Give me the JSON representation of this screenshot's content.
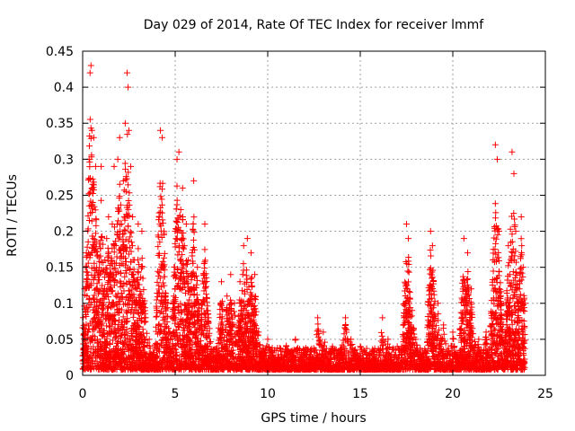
{
  "chart_data": {
    "type": "scatter",
    "title": "Day 029 of 2014, Rate Of TEC Index for receiver lmmf",
    "xlabel": "GPS time / hours",
    "ylabel": "ROTI / TECUs",
    "xlim": [
      0,
      25
    ],
    "ylim": [
      0,
      0.45
    ],
    "x_ticks": [
      0,
      5,
      10,
      15,
      20,
      25
    ],
    "x_tick_labels": [
      "0",
      "5",
      "10",
      "15",
      "20",
      "25"
    ],
    "y_ticks": [
      0,
      0.05,
      0.1,
      0.15,
      0.2,
      0.25,
      0.3,
      0.35,
      0.4,
      0.45
    ],
    "y_tick_labels": [
      "0",
      "0.05",
      "0.1",
      "0.15",
      "0.2",
      "0.25",
      "0.3",
      "0.35",
      "0.4",
      "0.45"
    ],
    "grid": true,
    "marker": "+",
    "color": "#ff0000",
    "series": [
      {
        "name": "ROTI",
        "points": [
          [
            0.0,
            0.02
          ],
          [
            0.1,
            0.12
          ],
          [
            0.15,
            0.15
          ],
          [
            0.2,
            0.17
          ],
          [
            0.3,
            0.06
          ],
          [
            0.35,
            0.3
          ],
          [
            0.4,
            0.42
          ],
          [
            0.45,
            0.43
          ],
          [
            0.5,
            0.34
          ],
          [
            0.5,
            0.26
          ],
          [
            0.55,
            0.24
          ],
          [
            0.6,
            0.33
          ],
          [
            0.7,
            0.29
          ],
          [
            0.8,
            0.05
          ],
          [
            1.0,
            0.29
          ],
          [
            1.2,
            0.16
          ],
          [
            1.3,
            0.19
          ],
          [
            1.4,
            0.22
          ],
          [
            1.5,
            0.13
          ],
          [
            1.6,
            0.21
          ],
          [
            1.7,
            0.29
          ],
          [
            1.8,
            0.18
          ],
          [
            1.9,
            0.3
          ],
          [
            2.0,
            0.33
          ],
          [
            2.1,
            0.21
          ],
          [
            2.2,
            0.27
          ],
          [
            2.3,
            0.35
          ],
          [
            2.4,
            0.42
          ],
          [
            2.45,
            0.4
          ],
          [
            2.5,
            0.34
          ],
          [
            2.6,
            0.29
          ],
          [
            2.7,
            0.22
          ],
          [
            2.8,
            0.16
          ],
          [
            2.9,
            0.12
          ],
          [
            3.0,
            0.21
          ],
          [
            3.1,
            0.1
          ],
          [
            3.2,
            0.2
          ],
          [
            3.4,
            0.08
          ],
          [
            3.6,
            0.05
          ],
          [
            3.9,
            0.04
          ],
          [
            4.2,
            0.34
          ],
          [
            4.3,
            0.33
          ],
          [
            4.4,
            0.2
          ],
          [
            4.6,
            0.1
          ],
          [
            4.8,
            0.08
          ],
          [
            5.0,
            0.2
          ],
          [
            5.1,
            0.3
          ],
          [
            5.2,
            0.31
          ],
          [
            5.3,
            0.23
          ],
          [
            5.4,
            0.26
          ],
          [
            5.5,
            0.18
          ],
          [
            5.6,
            0.21
          ],
          [
            5.7,
            0.16
          ],
          [
            5.8,
            0.12
          ],
          [
            6.0,
            0.27
          ],
          [
            6.2,
            0.15
          ],
          [
            6.4,
            0.1
          ],
          [
            6.6,
            0.21
          ],
          [
            6.8,
            0.08
          ],
          [
            7.5,
            0.13
          ],
          [
            7.8,
            0.11
          ],
          [
            8.0,
            0.14
          ],
          [
            8.2,
            0.1
          ],
          [
            8.5,
            0.13
          ],
          [
            8.7,
            0.18
          ],
          [
            8.9,
            0.19
          ],
          [
            9.1,
            0.17
          ],
          [
            9.3,
            0.14
          ],
          [
            9.5,
            0.06
          ],
          [
            10.0,
            0.05
          ],
          [
            11.0,
            0.04
          ],
          [
            11.5,
            0.05
          ],
          [
            12.0,
            0.03
          ],
          [
            12.7,
            0.08
          ],
          [
            13.0,
            0.06
          ],
          [
            13.5,
            0.04
          ],
          [
            14.2,
            0.08
          ],
          [
            14.5,
            0.05
          ],
          [
            15.0,
            0.04
          ],
          [
            15.5,
            0.03
          ],
          [
            16.2,
            0.08
          ],
          [
            16.5,
            0.05
          ],
          [
            17.0,
            0.04
          ],
          [
            17.5,
            0.21
          ],
          [
            17.6,
            0.19
          ],
          [
            17.8,
            0.09
          ],
          [
            18.0,
            0.05
          ],
          [
            18.8,
            0.2
          ],
          [
            18.9,
            0.18
          ],
          [
            19.2,
            0.1
          ],
          [
            19.5,
            0.07
          ],
          [
            20.0,
            0.06
          ],
          [
            20.6,
            0.19
          ],
          [
            20.8,
            0.17
          ],
          [
            21.0,
            0.12
          ],
          [
            21.4,
            0.05
          ],
          [
            21.8,
            0.06
          ],
          [
            22.3,
            0.32
          ],
          [
            22.4,
            0.3
          ],
          [
            22.5,
            0.2
          ],
          [
            22.6,
            0.1
          ],
          [
            23.0,
            0.18
          ],
          [
            23.2,
            0.31
          ],
          [
            23.3,
            0.28
          ],
          [
            23.4,
            0.2
          ],
          [
            23.6,
            0.12
          ],
          [
            23.7,
            0.22
          ],
          [
            23.8,
            0.15
          ],
          [
            23.9,
            0.1
          ]
        ]
      }
    ]
  }
}
